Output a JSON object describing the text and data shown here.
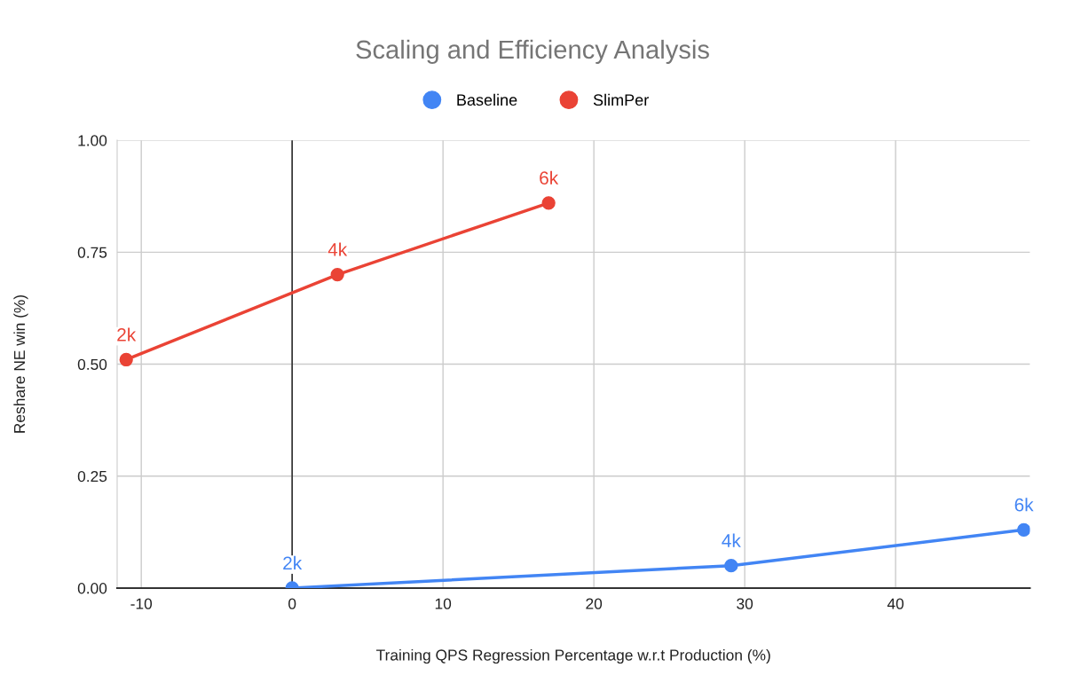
{
  "chart_data": {
    "type": "line",
    "title": "Scaling and Efficiency Analysis",
    "xlabel": "Training QPS Regression Percentage w.r.t Production (%)",
    "ylabel": "Reshare NE win (%)",
    "series": [
      {
        "name": "Baseline",
        "color": "#4285f4",
        "x": [
          0,
          29.1,
          48.5
        ],
        "values": [
          0,
          0.05,
          0.13
        ]
      },
      {
        "name": "SlimPer",
        "color": "#ea4335",
        "x": [
          -11,
          3,
          17
        ],
        "values": [
          0.51,
          0.7,
          0.86
        ]
      }
    ],
    "annotations": [
      {
        "text": "2k",
        "x": 0,
        "y": 0
      },
      {
        "text": "4k",
        "x": 29.1,
        "y": 0.05
      },
      {
        "text": "6k",
        "x": 48.5,
        "y": 0.13
      },
      {
        "text": "2k",
        "x": -11,
        "y": 0.51
      },
      {
        "text": "4k",
        "x": 3,
        "y": 0.7
      },
      {
        "text": "6k",
        "x": 17,
        "y": 0.86
      }
    ],
    "xlim": [
      -11.6,
      48.9
    ],
    "xticks": [
      -10,
      0,
      10,
      20,
      30,
      40
    ],
    "ylim": [
      0,
      1
    ],
    "yticks": [
      {
        "value": 0,
        "label": "0.00"
      },
      {
        "value": 0.25,
        "label": "0.25"
      },
      {
        "value": 0.5,
        "label": "0.50"
      },
      {
        "value": 0.75,
        "label": "0.75"
      },
      {
        "value": 1,
        "label": "1.00"
      }
    ],
    "ref_lines": [
      {
        "axis": "x",
        "value": 0,
        "color": "#333333"
      }
    ],
    "grid": true,
    "legend": "top",
    "marker": "circle",
    "line_style": "solid"
  }
}
